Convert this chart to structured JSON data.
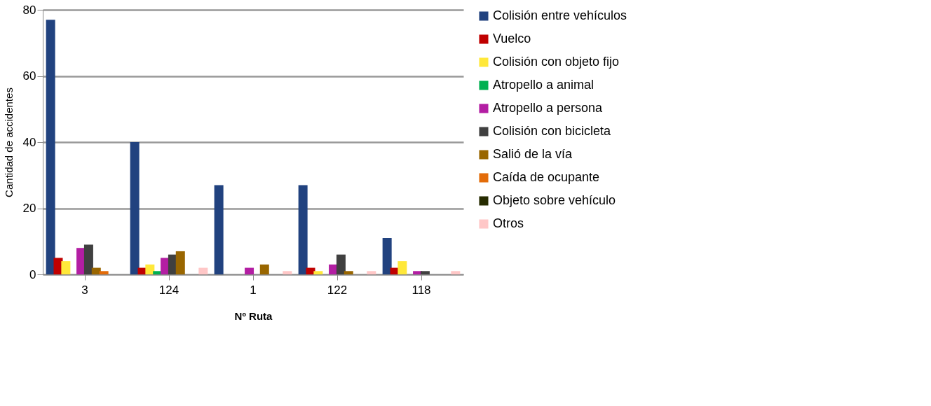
{
  "chart_data": {
    "type": "bar",
    "xlabel": "Nº Ruta",
    "ylabel": "Cantidad de accidentes",
    "categories": [
      "3",
      "124",
      "1",
      "122",
      "118"
    ],
    "series": [
      {
        "name": "Colisión entre vehículos",
        "color": "#21427f",
        "values": [
          77,
          40,
          27,
          27,
          11
        ]
      },
      {
        "name": "Vuelco",
        "color": "#c00000",
        "values": [
          5,
          2,
          0,
          2,
          2
        ]
      },
      {
        "name": "Colisión con objeto fijo",
        "color": "#ffe83a",
        "values": [
          4,
          3,
          0,
          1,
          4
        ]
      },
      {
        "name": "Atropello a animal",
        "color": "#00b050",
        "values": [
          0,
          1,
          0,
          0,
          0
        ]
      },
      {
        "name": "Atropello a persona",
        "color": "#b31ea3",
        "values": [
          8,
          5,
          2,
          3,
          1
        ]
      },
      {
        "name": "Colisión con bicicleta",
        "color": "#404040",
        "values": [
          9,
          6,
          0,
          6,
          1
        ]
      },
      {
        "name": "Salió de la vía",
        "color": "#996600",
        "values": [
          2,
          7,
          3,
          1,
          0
        ]
      },
      {
        "name": "Caída de ocupante",
        "color": "#e36c09",
        "values": [
          1,
          0,
          0,
          0,
          0
        ]
      },
      {
        "name": "Objeto sobre vehículo",
        "color": "#262b00",
        "values": [
          0,
          0,
          0,
          0,
          0
        ]
      },
      {
        "name": "Otros",
        "color": "#ffc7c7",
        "values": [
          0,
          2,
          1,
          1,
          1
        ]
      }
    ],
    "ylim": [
      0,
      80
    ],
    "yticks": [
      0,
      20,
      40,
      60,
      80
    ],
    "grid": "y",
    "legend": "right"
  }
}
